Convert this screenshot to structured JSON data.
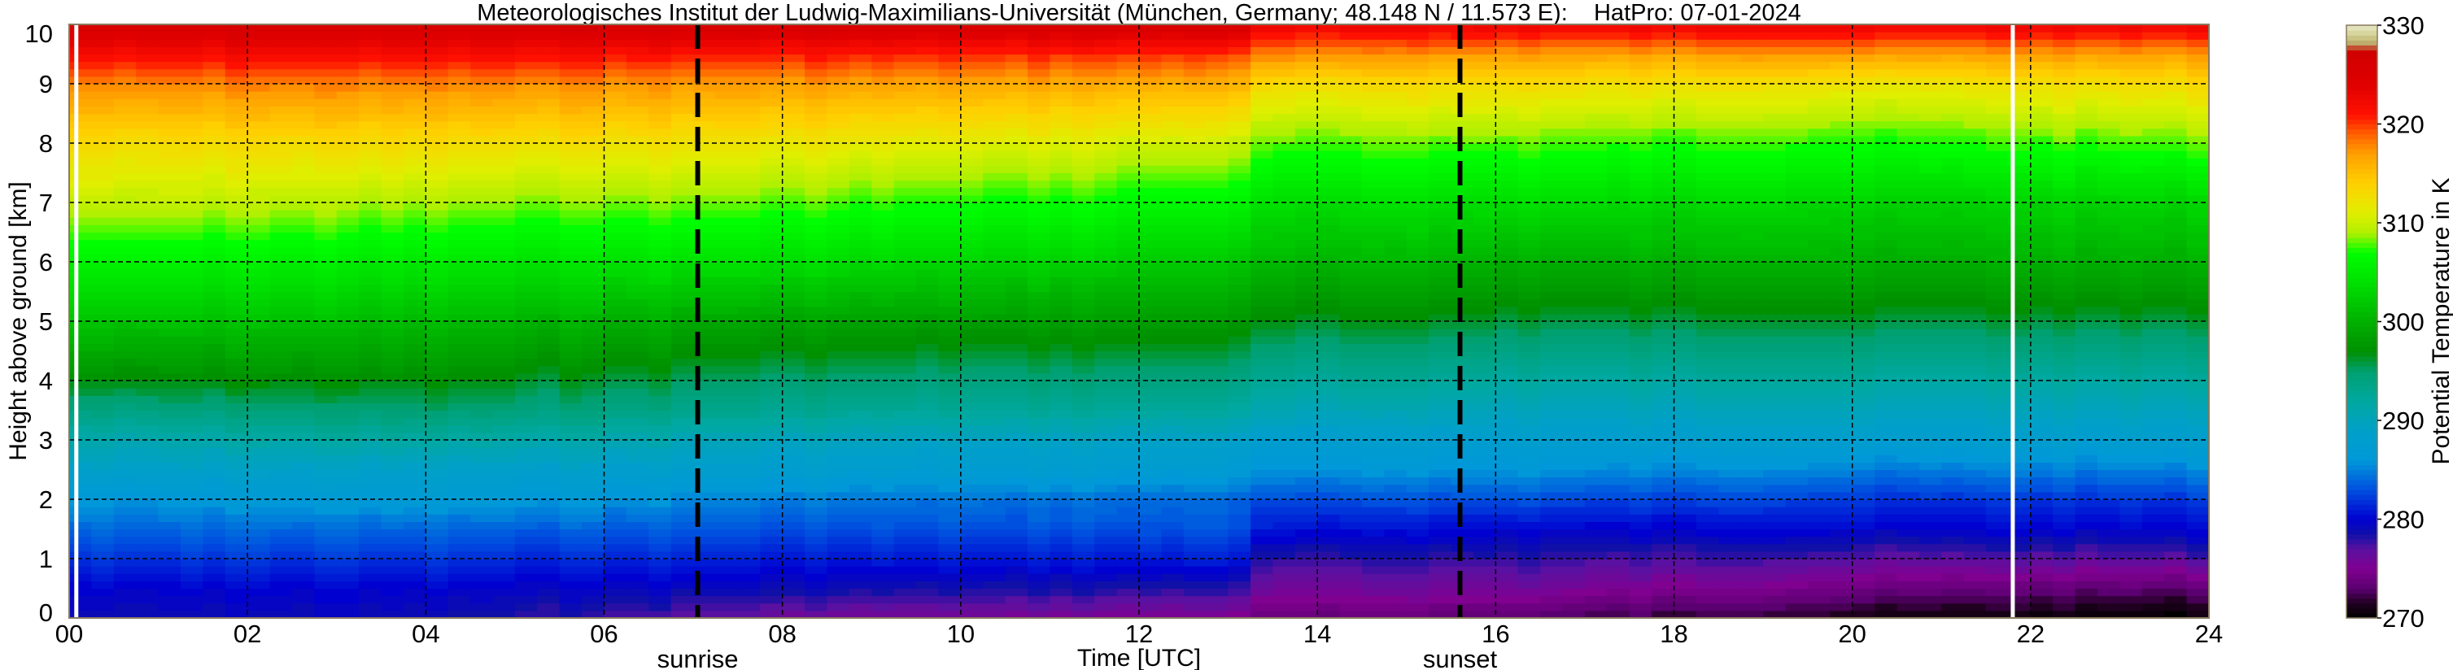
{
  "chart_data": {
    "type": "heatmap",
    "title": "Meteorologisches Institut der Ludwig-Maximilians-Universität (München, Germany; 48.148 N / 11.573 E):    HatPro: 07-01-2024",
    "xlabel": "Time [UTC]",
    "ylabel": "Height above ground [km]",
    "colorbar_label": "Potential Temperature in K",
    "xlim": [
      0,
      24
    ],
    "ylim": [
      0,
      10
    ],
    "clim": [
      270,
      330
    ],
    "x_ticks": [
      "00",
      "02",
      "04",
      "06",
      "08",
      "10",
      "12",
      "14",
      "16",
      "18",
      "20",
      "22",
      "24"
    ],
    "y_ticks": [
      "0",
      "1",
      "2",
      "3",
      "4",
      "5",
      "6",
      "7",
      "8",
      "9",
      "10"
    ],
    "colorbar_ticks": [
      "270",
      "280",
      "290",
      "300",
      "310",
      "320",
      "330"
    ],
    "grid": true,
    "events": [
      {
        "label": "sunrise",
        "time": 7.05
      },
      {
        "label": "sunset",
        "time": 15.6
      }
    ],
    "data_gaps": [
      0.08,
      21.8
    ],
    "heights_km": [
      0,
      0.5,
      1,
      1.5,
      2,
      2.5,
      3,
      3.5,
      4,
      5,
      6,
      7,
      8,
      9,
      9.5,
      10
    ],
    "profiles": [
      {
        "time": 0,
        "theta": [
          279,
          280,
          282,
          284,
          286,
          289,
          291,
          294,
          297,
          302,
          306,
          310,
          313,
          318,
          322,
          326
        ]
      },
      {
        "time": 4,
        "theta": [
          279,
          280,
          282,
          284,
          287,
          289,
          292,
          295,
          297,
          301,
          305,
          309,
          313,
          318,
          322,
          326
        ]
      },
      {
        "time": 8,
        "theta": [
          276,
          279,
          281,
          283,
          285,
          288,
          290,
          293,
          295,
          299,
          304,
          308,
          312,
          317,
          321,
          326
        ]
      },
      {
        "time": 13.2,
        "theta": [
          275,
          278,
          281,
          283,
          284,
          287,
          289,
          292,
          294,
          298,
          302,
          306,
          310,
          316,
          320,
          326
        ]
      },
      {
        "time": 13.4,
        "theta": [
          274,
          276,
          278,
          281,
          283,
          286,
          288,
          291,
          293,
          297,
          301,
          304,
          308,
          313,
          318,
          323
        ]
      },
      {
        "time": 16,
        "theta": [
          273,
          276,
          278,
          280,
          283,
          286,
          288,
          290,
          292,
          296,
          300,
          304,
          308,
          313,
          317,
          323
        ]
      },
      {
        "time": 20,
        "theta": [
          271,
          274,
          277,
          280,
          282,
          285,
          288,
          290,
          292,
          296,
          300,
          303,
          307,
          312,
          317,
          323
        ]
      },
      {
        "time": 24,
        "theta": [
          270,
          273,
          277,
          280,
          282,
          285,
          288,
          290,
          292,
          296,
          300,
          303,
          308,
          313,
          317,
          323
        ]
      }
    ],
    "colormap": [
      [
        270,
        "#000000"
      ],
      [
        271.5,
        "#200020"
      ],
      [
        273,
        "#5a0070"
      ],
      [
        275,
        "#800090"
      ],
      [
        277,
        "#5a10a0"
      ],
      [
        278.5,
        "#1010a8"
      ],
      [
        280,
        "#0000d0"
      ],
      [
        283,
        "#0050e0"
      ],
      [
        286,
        "#0098d8"
      ],
      [
        289,
        "#00a0c8"
      ],
      [
        292,
        "#00a8a0"
      ],
      [
        295,
        "#00a070"
      ],
      [
        297,
        "#009000"
      ],
      [
        300,
        "#00b000"
      ],
      [
        304,
        "#00e000"
      ],
      [
        307,
        "#00ff00"
      ],
      [
        309,
        "#b0f000"
      ],
      [
        311,
        "#e0ee00"
      ],
      [
        314,
        "#ffd000"
      ],
      [
        317,
        "#ffa000"
      ],
      [
        319,
        "#ff6000"
      ],
      [
        321,
        "#ff1000"
      ],
      [
        324,
        "#e00000"
      ],
      [
        327.5,
        "#d00000"
      ],
      [
        328,
        "#b8a060"
      ],
      [
        329,
        "#d0d090"
      ],
      [
        330,
        "#e8e8c8"
      ]
    ]
  }
}
